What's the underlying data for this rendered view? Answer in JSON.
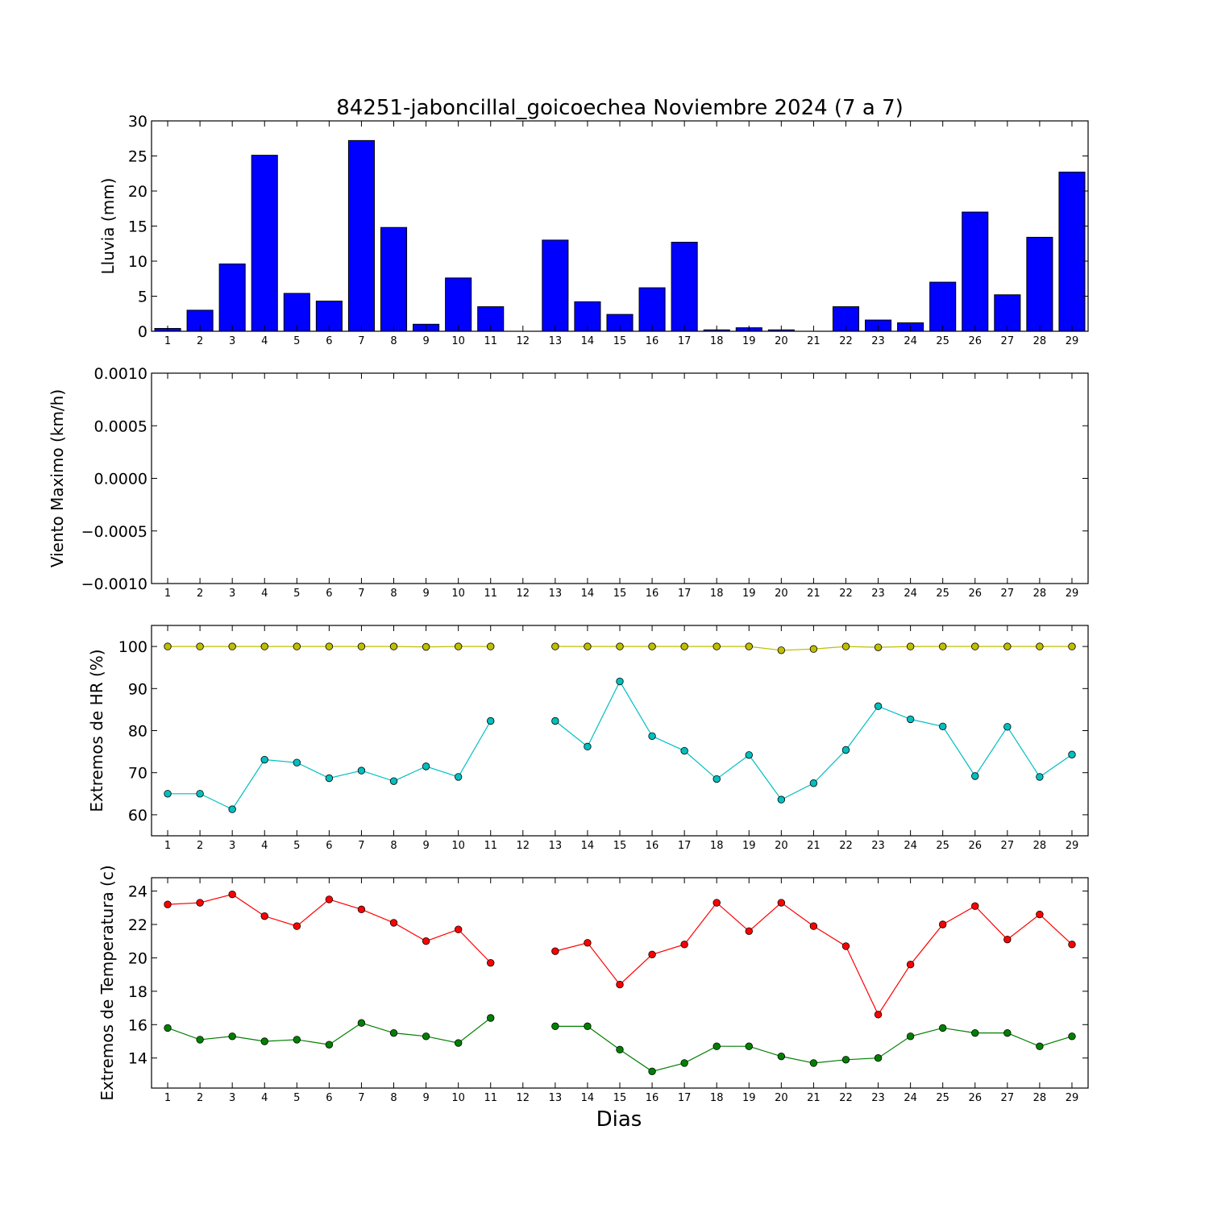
{
  "title": "84251-jaboncillal_goicoechea Noviembre 2024  (7 a 7)",
  "xlabel": "Dias",
  "chart_data": [
    {
      "type": "bar",
      "ylabel": "Lluvia (mm)",
      "ylim": [
        0,
        30
      ],
      "yticks": [
        "0",
        "5",
        "10",
        "15",
        "20",
        "25",
        "30"
      ],
      "categories": [
        "1",
        "2",
        "3",
        "4",
        "5",
        "6",
        "7",
        "8",
        "9",
        "10",
        "11",
        "12",
        "13",
        "14",
        "15",
        "16",
        "17",
        "18",
        "19",
        "20",
        "21",
        "22",
        "23",
        "24",
        "25",
        "26",
        "27",
        "28",
        "29"
      ],
      "values": [
        0.4,
        3.0,
        9.6,
        25.1,
        5.4,
        4.3,
        27.2,
        14.8,
        1.0,
        7.6,
        3.5,
        0,
        13.0,
        4.2,
        2.4,
        6.2,
        12.7,
        0.2,
        0.5,
        0.2,
        0,
        3.5,
        1.6,
        1.2,
        7.0,
        17.0,
        5.2,
        13.4,
        22.7
      ],
      "color": "#0000ff"
    },
    {
      "type": "line",
      "ylabel": "Viento Maximo (km/h)",
      "ylim": [
        -0.001,
        0.001
      ],
      "yticks": [
        "−0.0010",
        "−0.0005",
        "0.0000",
        "0.0005",
        "0.0010"
      ],
      "categories": [
        "1",
        "2",
        "3",
        "4",
        "5",
        "6",
        "7",
        "8",
        "9",
        "10",
        "11",
        "12",
        "13",
        "14",
        "15",
        "16",
        "17",
        "18",
        "19",
        "20",
        "21",
        "22",
        "23",
        "24",
        "25",
        "26",
        "27",
        "28",
        "29"
      ],
      "series": []
    },
    {
      "type": "line",
      "ylabel": "Extremos de HR (%)",
      "ylim": [
        55,
        105
      ],
      "yticks": [
        "60",
        "70",
        "80",
        "90",
        "100"
      ],
      "categories": [
        "1",
        "2",
        "3",
        "4",
        "5",
        "6",
        "7",
        "8",
        "9",
        "10",
        "11",
        "12",
        "13",
        "14",
        "15",
        "16",
        "17",
        "18",
        "19",
        "20",
        "21",
        "22",
        "23",
        "24",
        "25",
        "26",
        "27",
        "28",
        "29"
      ],
      "series": [
        {
          "color": "#bfbf00",
          "values": [
            100,
            100,
            100,
            100,
            100,
            100,
            100,
            100,
            99.9,
            100,
            100,
            null,
            100,
            100,
            100,
            100,
            100,
            100,
            100,
            99.1,
            99.4,
            100,
            99.8,
            100,
            100,
            100,
            100,
            100,
            100
          ]
        },
        {
          "color": "#00bfbf",
          "values": [
            65,
            65,
            61.3,
            73.1,
            72.4,
            68.7,
            70.5,
            68,
            71.5,
            69,
            82.3,
            null,
            82.3,
            76.2,
            91.7,
            78.7,
            75.2,
            68.5,
            74.2,
            63.6,
            67.5,
            75.4,
            85.8,
            82.7,
            81,
            69.2,
            80.9,
            69,
            74.3
          ]
        }
      ]
    },
    {
      "type": "line",
      "ylabel": "Extremos de Temperatura (c)",
      "ylim": [
        12.2,
        24.8
      ],
      "yticks": [
        "14",
        "16",
        "18",
        "20",
        "22",
        "24"
      ],
      "categories": [
        "1",
        "2",
        "3",
        "4",
        "5",
        "6",
        "7",
        "8",
        "9",
        "10",
        "11",
        "12",
        "13",
        "14",
        "15",
        "16",
        "17",
        "18",
        "19",
        "20",
        "21",
        "22",
        "23",
        "24",
        "25",
        "26",
        "27",
        "28",
        "29"
      ],
      "series": [
        {
          "color": "#ff0000",
          "values": [
            23.2,
            23.3,
            23.8,
            22.5,
            21.9,
            23.5,
            22.9,
            22.1,
            21,
            21.7,
            19.7,
            null,
            20.4,
            20.9,
            18.4,
            20.2,
            20.8,
            23.3,
            21.6,
            23.3,
            21.9,
            20.7,
            16.6,
            19.6,
            22,
            23.1,
            21.1,
            22.6,
            20.8
          ]
        },
        {
          "color": "#008000",
          "values": [
            15.8,
            15.1,
            15.3,
            15,
            15.1,
            14.8,
            16.1,
            15.5,
            15.3,
            14.9,
            16.4,
            null,
            15.9,
            15.9,
            14.5,
            13.2,
            13.7,
            14.7,
            14.7,
            14.1,
            13.7,
            13.9,
            14,
            15.3,
            15.8,
            15.5,
            15.5,
            14.7,
            15.3
          ]
        }
      ]
    }
  ]
}
